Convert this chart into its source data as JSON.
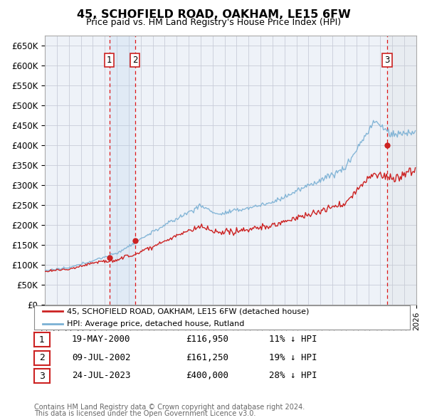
{
  "title": "45, SCHOFIELD ROAD, OAKHAM, LE15 6FW",
  "subtitle": "Price paid vs. HM Land Registry's House Price Index (HPI)",
  "ylim": [
    0,
    675000
  ],
  "yticks": [
    0,
    50000,
    100000,
    150000,
    200000,
    250000,
    300000,
    350000,
    400000,
    450000,
    500000,
    550000,
    600000,
    650000
  ],
  "ytick_labels": [
    "£0",
    "£50K",
    "£100K",
    "£150K",
    "£200K",
    "£250K",
    "£300K",
    "£350K",
    "£400K",
    "£450K",
    "£500K",
    "£550K",
    "£600K",
    "£650K"
  ],
  "hpi_color": "#7ab0d4",
  "price_color": "#cc2222",
  "background_color": "#ffffff",
  "plot_bg_color": "#eef2f8",
  "grid_color": "#c8ccd8",
  "legend_label_price": "45, SCHOFIELD ROAD, OAKHAM, LE15 6FW (detached house)",
  "legend_label_hpi": "HPI: Average price, detached house, Rutland",
  "sales": [
    {
      "label": "1",
      "date_str": "19-MAY-2000",
      "price": 116950,
      "pct": "11%",
      "year": 2000.38
    },
    {
      "label": "2",
      "date_str": "09-JUL-2002",
      "price": 161250,
      "pct": "19%",
      "year": 2002.52
    },
    {
      "label": "3",
      "date_str": "24-JUL-2023",
      "price": 400000,
      "pct": "28%",
      "year": 2023.56
    }
  ],
  "footer1": "Contains HM Land Registry data © Crown copyright and database right 2024.",
  "footer2": "This data is licensed under the Open Government Licence v3.0.",
  "xmin": 1995.0,
  "xmax": 2026.0
}
